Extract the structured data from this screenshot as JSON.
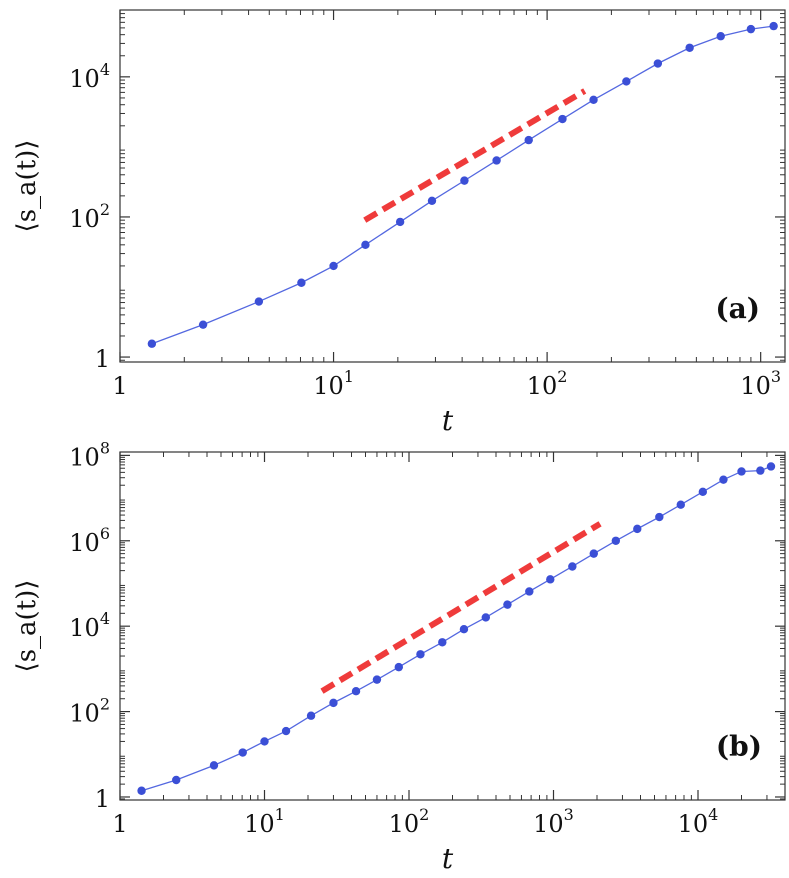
{
  "chart_data": [
    {
      "panel_label": "(a)",
      "type": "line",
      "xscale": "log",
      "yscale": "log",
      "xlabel": "t",
      "ylabel": "⟨s_a(t)⟩",
      "xlim": [
        1,
        1300
      ],
      "ylim": [
        0.85,
        90000
      ],
      "xticks": [
        {
          "value": 1,
          "base": "1",
          "exp": ""
        },
        {
          "value": 10,
          "base": "10",
          "exp": "1"
        },
        {
          "value": 100,
          "base": "10",
          "exp": "2"
        },
        {
          "value": 1000,
          "base": "10",
          "exp": "3"
        }
      ],
      "yticks": [
        {
          "value": 1,
          "base": "1",
          "exp": ""
        },
        {
          "value": 100,
          "base": "10",
          "exp": "2"
        },
        {
          "value": 10000,
          "base": "10",
          "exp": "4"
        }
      ],
      "series": [
        {
          "marker_color": "#3b4fd6",
          "line_color": "#5468e0",
          "x": [
            1.41,
            2.45,
            4.47,
            7.07,
            10,
            14.1,
            20.5,
            28.9,
            41,
            58,
            82,
            118,
            165,
            235,
            330,
            465,
            650,
            900,
            1150
          ],
          "y": [
            1.55,
            2.9,
            6.2,
            11.5,
            20,
            40,
            85,
            170,
            330,
            640,
            1250,
            2500,
            4700,
            8600,
            15500,
            26000,
            38000,
            48000,
            53000
          ]
        }
      ],
      "reference_line": {
        "color": "#ef3b3b",
        "x": [
          14,
          150
        ],
        "y": [
          90,
          6300
        ]
      }
    },
    {
      "panel_label": "(b)",
      "type": "line",
      "xscale": "log",
      "yscale": "log",
      "xlabel": "t",
      "ylabel": "⟨s_a(t)⟩",
      "xlim": [
        1,
        40000
      ],
      "ylim": [
        0.85,
        120000000
      ],
      "xticks": [
        {
          "value": 1,
          "base": "1",
          "exp": ""
        },
        {
          "value": 10,
          "base": "10",
          "exp": "1"
        },
        {
          "value": 100,
          "base": "10",
          "exp": "2"
        },
        {
          "value": 1000,
          "base": "10",
          "exp": "3"
        },
        {
          "value": 10000,
          "base": "10",
          "exp": "4"
        }
      ],
      "yticks": [
        {
          "value": 1,
          "base": "1",
          "exp": ""
        },
        {
          "value": 100,
          "base": "10",
          "exp": "2"
        },
        {
          "value": 10000,
          "base": "10",
          "exp": "4"
        },
        {
          "value": 1000000,
          "base": "10",
          "exp": "6"
        },
        {
          "value": 100000000,
          "base": "10",
          "exp": "8"
        }
      ],
      "series": [
        {
          "marker_color": "#3b4fd6",
          "line_color": "#5468e0",
          "x": [
            1.41,
            2.45,
            4.47,
            7.07,
            10,
            14.1,
            21,
            30,
            43,
            60,
            85,
            120,
            170,
            240,
            340,
            480,
            680,
            950,
            1350,
            1900,
            2700,
            3800,
            5400,
            7600,
            10800,
            15000,
            20000,
            27000,
            32000
          ],
          "y": [
            1.4,
            2.5,
            5.5,
            11,
            20,
            35,
            80,
            160,
            300,
            560,
            1100,
            2200,
            4200,
            8500,
            16000,
            32000,
            65000,
            125000,
            250000,
            500000,
            1000000,
            1900000,
            3600000,
            7000000,
            14000000,
            27000000,
            42000000,
            44000000,
            55000000
          ]
        }
      ],
      "reference_line": {
        "color": "#ef3b3b",
        "x": [
          25,
          2100
        ],
        "y": [
          300,
          2500000
        ]
      }
    }
  ]
}
